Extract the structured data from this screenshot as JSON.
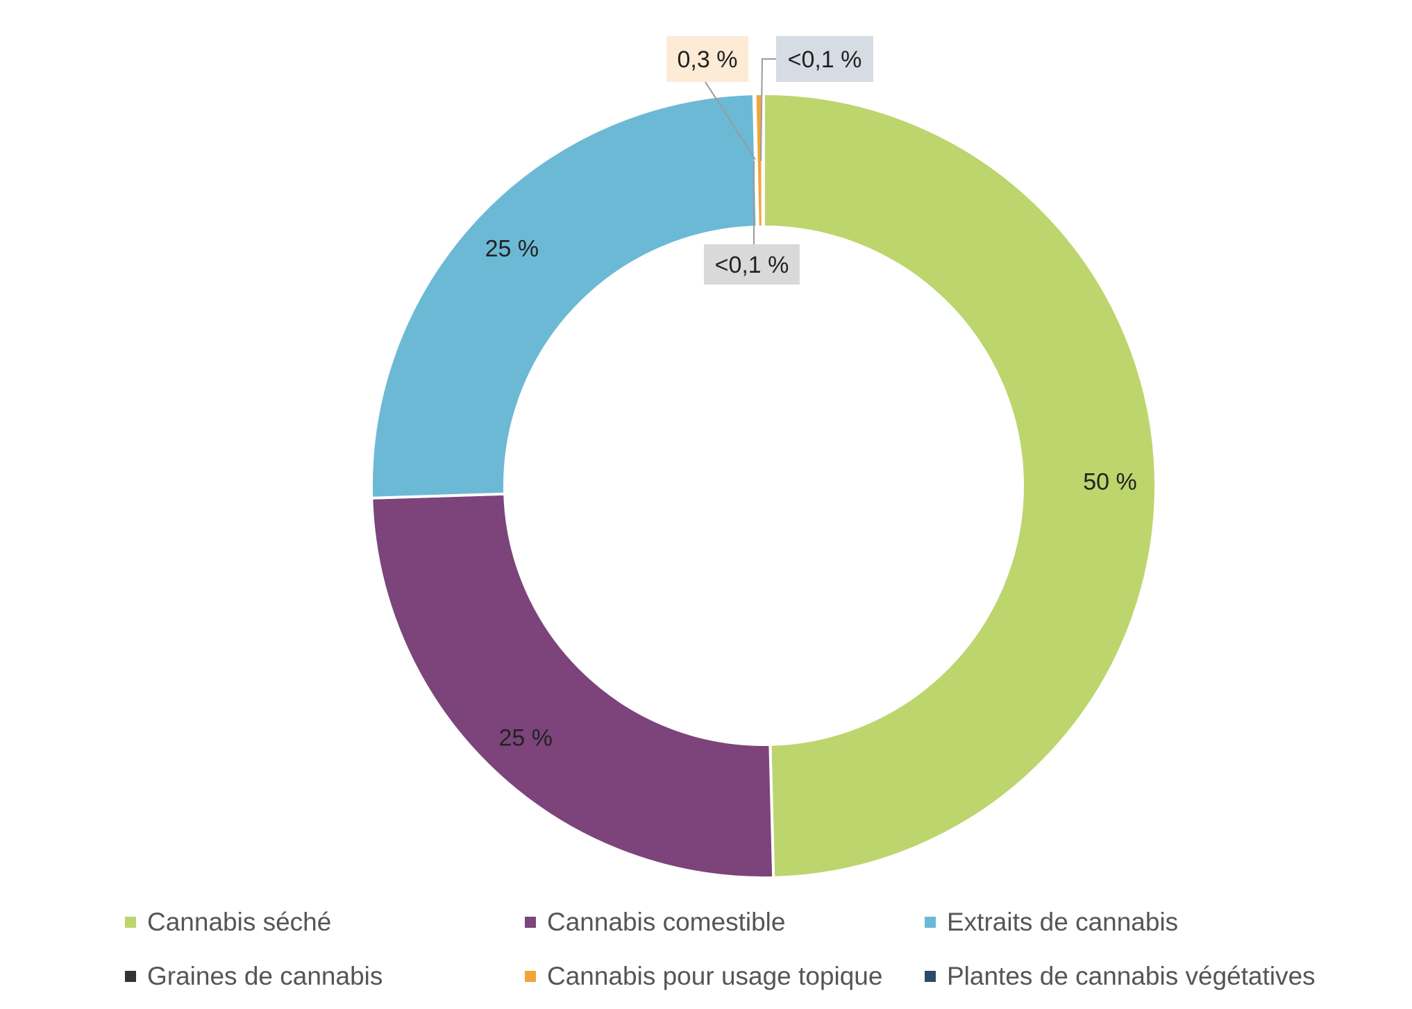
{
  "chart_data": {
    "type": "pie",
    "donut": true,
    "title": "",
    "categories": [
      "Cannabis séché",
      "Cannabis comestible",
      "Extraits de cannabis",
      "Graines de cannabis",
      "Cannabis pour usage topique",
      "Plantes de cannabis végétatives"
    ],
    "values": [
      49.6,
      24.9,
      25.1,
      0.05,
      0.3,
      0.05
    ],
    "labels": [
      "50 %",
      "25 %",
      "25 %",
      "<0,1 %",
      "0,3 %",
      "<0,1 %"
    ],
    "colors": [
      "#BDD56D",
      "#7C447B",
      "#6CB9D6",
      "#333333",
      "#F2A43A",
      "#2E4A6B"
    ],
    "callout_fills": [
      "",
      "",
      "",
      "#D9D9D9",
      "#FDEBD6",
      "#D6DCE4"
    ],
    "legend_position": "bottom",
    "legend_columns": 3
  }
}
